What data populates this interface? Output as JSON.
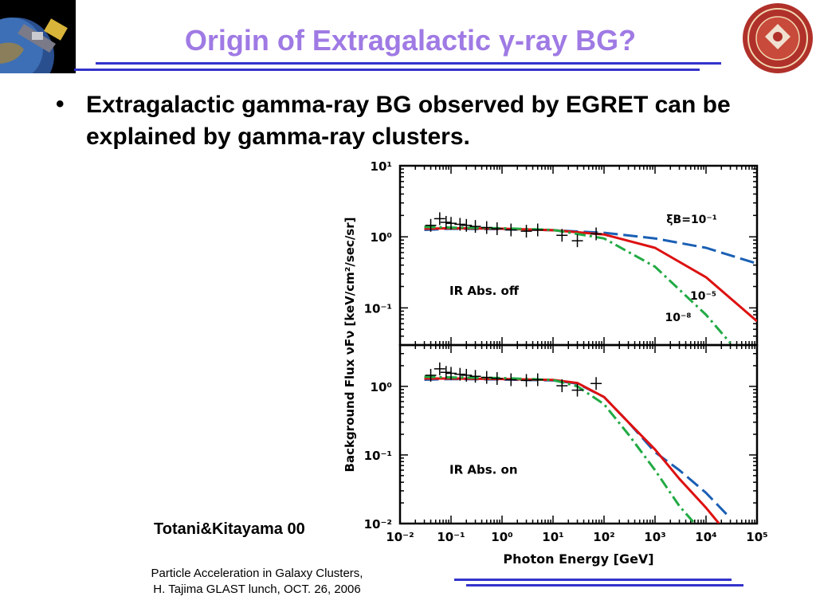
{
  "slide": {
    "title": "Origin of Extragalactic γ-ray BG?",
    "bullet": "Extragalactic gamma-ray BG observed by EGRET can be explained by gamma-ray clusters.",
    "citation": "Totani&Kitayama 00",
    "footer_line1": "Particle Acceleration in Galaxy Clusters,",
    "footer_line2": "H. Tajima GLAST lunch, OCT. 26, 2006",
    "title_color": "#9f7ae4",
    "rule_color": "#3333cc"
  },
  "chart_data": {
    "type": "line",
    "xlabel": "Photon Energy [GeV]",
    "ylabel": "Background Flux νFν [keV/cm²/sec/sr]",
    "x_scale": "log",
    "y_scale": "log",
    "xlim": [
      0.01,
      100000
    ],
    "x_ticks": [
      "10⁻²",
      "10⁻¹",
      "10⁰",
      "10¹",
      "10²",
      "10³",
      "10⁴",
      "10⁵"
    ],
    "colors": {
      "blue": "#1a5fb4",
      "red": "#dd1111",
      "green": "#22aa44"
    },
    "panels": [
      {
        "annotation": "IR Abs. off",
        "ylim": [
          0.03,
          10
        ],
        "y_ticks": [
          "10¹",
          "10⁰",
          "10⁻¹"
        ],
        "curve_labels": [
          "ξB=10⁻¹",
          "10⁻⁵",
          "10⁻⁸"
        ],
        "series": [
          {
            "style": "dashed",
            "color": "blue",
            "x": [
              0.03,
              0.1,
              1,
              10,
              100,
              1000,
              10000,
              100000
            ],
            "y": [
              1.25,
              1.3,
              1.28,
              1.24,
              1.14,
              0.95,
              0.7,
              0.42
            ]
          },
          {
            "style": "solid",
            "color": "red",
            "x": [
              0.03,
              0.1,
              1,
              10,
              100,
              1000,
              10000,
              100000
            ],
            "y": [
              1.3,
              1.32,
              1.3,
              1.24,
              1.08,
              0.7,
              0.27,
              0.065
            ]
          },
          {
            "style": "dashdot",
            "color": "green",
            "x": [
              0.03,
              0.1,
              1,
              10,
              100,
              1000,
              10000,
              30000
            ],
            "y": [
              1.38,
              1.35,
              1.32,
              1.25,
              0.95,
              0.38,
              0.08,
              0.032
            ]
          }
        ],
        "points": [
          {
            "x": 0.04,
            "y": 1.45
          },
          {
            "x": 0.06,
            "y": 1.8
          },
          {
            "x": 0.08,
            "y": 1.6
          },
          {
            "x": 0.1,
            "y": 1.55
          },
          {
            "x": 0.15,
            "y": 1.5
          },
          {
            "x": 0.2,
            "y": 1.45
          },
          {
            "x": 0.3,
            "y": 1.4
          },
          {
            "x": 0.5,
            "y": 1.35
          },
          {
            "x": 0.8,
            "y": 1.3
          },
          {
            "x": 1.5,
            "y": 1.25
          },
          {
            "x": 3,
            "y": 1.2
          },
          {
            "x": 5,
            "y": 1.25
          },
          {
            "x": 15,
            "y": 1.05
          },
          {
            "x": 30,
            "y": 0.88
          },
          {
            "x": 70,
            "y": 1.1
          }
        ]
      },
      {
        "annotation": "IR Abs. on",
        "ylim": [
          0.01,
          4
        ],
        "y_ticks": [
          "10⁰",
          "10⁻¹",
          "10⁻²"
        ],
        "curve_labels": [],
        "series": [
          {
            "style": "dashed",
            "color": "blue",
            "x": [
              0.03,
              0.1,
              1,
              10,
              30,
              100,
              300,
              1000,
              3000,
              10000,
              30000
            ],
            "y": [
              1.25,
              1.28,
              1.26,
              1.22,
              1.1,
              0.7,
              0.3,
              0.11,
              0.06,
              0.028,
              0.012
            ]
          },
          {
            "style": "solid",
            "color": "red",
            "x": [
              0.03,
              0.1,
              1,
              10,
              30,
              100,
              300,
              1000,
              3000,
              10000,
              18000
            ],
            "y": [
              1.3,
              1.3,
              1.28,
              1.24,
              1.12,
              0.7,
              0.3,
              0.12,
              0.045,
              0.017,
              0.01
            ]
          },
          {
            "style": "dashdot",
            "color": "green",
            "x": [
              0.03,
              0.1,
              1,
              10,
              30,
              100,
              300,
              1000,
              3000,
              6000
            ],
            "y": [
              1.38,
              1.35,
              1.32,
              1.24,
              1.0,
              0.55,
              0.2,
              0.06,
              0.018,
              0.01
            ]
          }
        ],
        "points": [
          {
            "x": 0.04,
            "y": 1.45
          },
          {
            "x": 0.06,
            "y": 1.8
          },
          {
            "x": 0.08,
            "y": 1.6
          },
          {
            "x": 0.1,
            "y": 1.55
          },
          {
            "x": 0.15,
            "y": 1.5
          },
          {
            "x": 0.2,
            "y": 1.45
          },
          {
            "x": 0.3,
            "y": 1.4
          },
          {
            "x": 0.5,
            "y": 1.35
          },
          {
            "x": 0.8,
            "y": 1.3
          },
          {
            "x": 1.5,
            "y": 1.25
          },
          {
            "x": 3,
            "y": 1.22
          },
          {
            "x": 5,
            "y": 1.25
          },
          {
            "x": 15,
            "y": 1.02
          },
          {
            "x": 30,
            "y": 0.88
          },
          {
            "x": 70,
            "y": 1.1
          }
        ]
      }
    ]
  }
}
